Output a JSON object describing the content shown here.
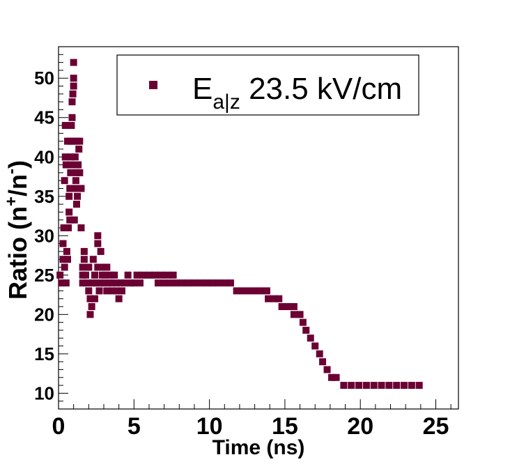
{
  "chart_data": {
    "type": "scatter",
    "title": "",
    "xlabel": "Time (ns)",
    "ylabel_base": "Ratio (n",
    "ylabel_sup1": "+",
    "ylabel_mid": "/n",
    "ylabel_sup2": "-",
    "ylabel_end": ")",
    "xlim": [
      0,
      26.5
    ],
    "ylim": [
      8,
      54
    ],
    "xticks": [
      0,
      5,
      10,
      15,
      20,
      25
    ],
    "yticks": [
      10,
      15,
      20,
      25,
      30,
      35,
      40,
      45,
      50
    ],
    "legend": {
      "position": "top-right",
      "label_main": "E",
      "label_sub": "a|z",
      "label_rest": " 23.5 kV/cm"
    },
    "marker_color": "#6b0033",
    "series": [
      {
        "points": [
          [
            0.1,
            25
          ],
          [
            0.2,
            24
          ],
          [
            0.3,
            27
          ],
          [
            0.3,
            29
          ],
          [
            0.35,
            31
          ],
          [
            0.4,
            26
          ],
          [
            0.4,
            37
          ],
          [
            0.45,
            44
          ],
          [
            0.45,
            40
          ],
          [
            0.5,
            39
          ],
          [
            0.5,
            24
          ],
          [
            0.55,
            28
          ],
          [
            0.6,
            27
          ],
          [
            0.65,
            31
          ],
          [
            0.7,
            33
          ],
          [
            0.7,
            35
          ],
          [
            0.75,
            32
          ],
          [
            0.75,
            36
          ],
          [
            0.8,
            38
          ],
          [
            0.8,
            42
          ],
          [
            0.85,
            44
          ],
          [
            0.9,
            45
          ],
          [
            0.9,
            47
          ],
          [
            0.95,
            48
          ],
          [
            1.0,
            49
          ],
          [
            1.0,
            50
          ],
          [
            1.0,
            52
          ],
          [
            0.9,
            39
          ],
          [
            1.0,
            36
          ],
          [
            1.05,
            32
          ],
          [
            1.1,
            40
          ],
          [
            1.15,
            37
          ],
          [
            1.2,
            34
          ],
          [
            1.2,
            38
          ],
          [
            1.25,
            35
          ],
          [
            1.3,
            36
          ],
          [
            1.3,
            39
          ],
          [
            1.35,
            41
          ],
          [
            1.4,
            42
          ],
          [
            1.4,
            38
          ],
          [
            1.5,
            36
          ],
          [
            1.5,
            31
          ],
          [
            0.6,
            42
          ],
          [
            0.8,
            40
          ],
          [
            1.0,
            42
          ],
          [
            1.2,
            42
          ],
          [
            1.6,
            24
          ],
          [
            1.6,
            25
          ],
          [
            1.6,
            26
          ],
          [
            1.7,
            27
          ],
          [
            1.7,
            28
          ],
          [
            1.8,
            25
          ],
          [
            1.9,
            24
          ],
          [
            2.0,
            26
          ],
          [
            2.0,
            23
          ],
          [
            2.1,
            22
          ],
          [
            2.1,
            20
          ],
          [
            2.2,
            21
          ],
          [
            2.3,
            24
          ],
          [
            2.3,
            27
          ],
          [
            2.4,
            22
          ],
          [
            2.4,
            25
          ],
          [
            2.5,
            24
          ],
          [
            2.6,
            26
          ],
          [
            2.6,
            29
          ],
          [
            2.6,
            30
          ],
          [
            2.7,
            23
          ],
          [
            2.8,
            24
          ],
          [
            2.8,
            28
          ],
          [
            2.9,
            25
          ],
          [
            3.0,
            26
          ],
          [
            3.0,
            24
          ],
          [
            3.1,
            25
          ],
          [
            3.2,
            23
          ],
          [
            3.2,
            26
          ],
          [
            3.3,
            24
          ],
          [
            3.4,
            25
          ],
          [
            3.5,
            24
          ],
          [
            3.6,
            23
          ],
          [
            3.7,
            25
          ],
          [
            3.8,
            24
          ],
          [
            3.9,
            23
          ],
          [
            4.0,
            22
          ],
          [
            4.1,
            24
          ],
          [
            4.2,
            23
          ],
          [
            4.4,
            24
          ],
          [
            4.6,
            25
          ],
          [
            4.8,
            24
          ],
          [
            5.0,
            24
          ],
          [
            5.2,
            25
          ],
          [
            5.4,
            24
          ],
          [
            5.6,
            25
          ],
          [
            6.0,
            25
          ],
          [
            6.4,
            25
          ],
          [
            6.8,
            25
          ],
          [
            7.2,
            25
          ],
          [
            7.6,
            25
          ],
          [
            6.6,
            24
          ],
          [
            7.0,
            24
          ],
          [
            7.4,
            24
          ],
          [
            7.8,
            24
          ],
          [
            8.2,
            24
          ],
          [
            8.6,
            24
          ],
          [
            9.0,
            24
          ],
          [
            9.4,
            24
          ],
          [
            9.8,
            24
          ],
          [
            10.2,
            24
          ],
          [
            10.6,
            24
          ],
          [
            11.0,
            24
          ],
          [
            11.4,
            24
          ],
          [
            11.8,
            23
          ],
          [
            12.2,
            23
          ],
          [
            12.6,
            23
          ],
          [
            13.0,
            23
          ],
          [
            13.4,
            23
          ],
          [
            13.8,
            23
          ],
          [
            13.9,
            22
          ],
          [
            14.3,
            22
          ],
          [
            14.6,
            22
          ],
          [
            14.8,
            21
          ],
          [
            15.2,
            21
          ],
          [
            15.6,
            21
          ],
          [
            15.6,
            20
          ],
          [
            16.0,
            20
          ],
          [
            16.2,
            19
          ],
          [
            16.4,
            18
          ],
          [
            16.7,
            17
          ],
          [
            17.0,
            16
          ],
          [
            17.3,
            15
          ],
          [
            17.5,
            14
          ],
          [
            17.8,
            13
          ],
          [
            18.1,
            12
          ],
          [
            18.4,
            12
          ],
          [
            18.9,
            11
          ],
          [
            19.4,
            11
          ],
          [
            19.9,
            11
          ],
          [
            20.4,
            11
          ],
          [
            20.9,
            11
          ],
          [
            21.4,
            11
          ],
          [
            21.9,
            11
          ],
          [
            22.4,
            11
          ],
          [
            22.9,
            11
          ],
          [
            23.4,
            11
          ],
          [
            23.9,
            11
          ]
        ]
      }
    ]
  }
}
